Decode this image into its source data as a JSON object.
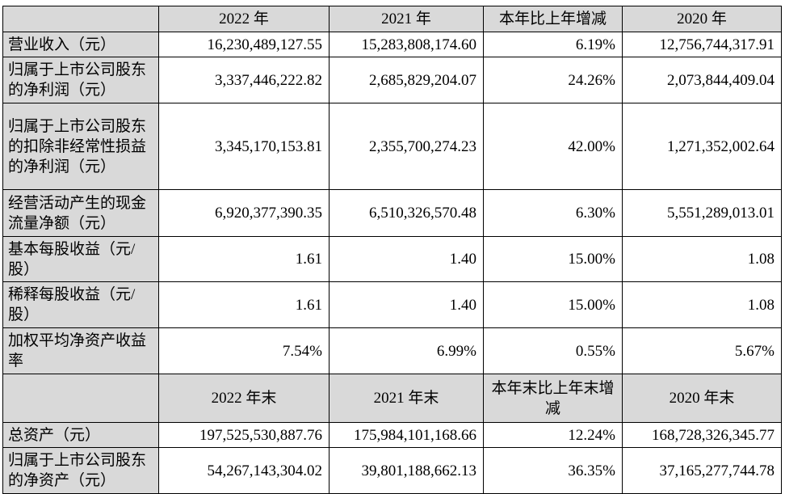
{
  "header1": {
    "col1": "2022 年",
    "col2": "2021 年",
    "col3": "本年比上年增减",
    "col4": "2020 年"
  },
  "rows1": [
    {
      "label": "营业收入（元）",
      "v2022": "16,230,489,127.55",
      "v2021": "15,283,808,174.60",
      "change": "6.19%",
      "v2020": "12,756,744,317.91"
    },
    {
      "label": "归属于上市公司股东的净利润（元）",
      "v2022": "3,337,446,222.82",
      "v2021": "2,685,829,204.07",
      "change": "24.26%",
      "v2020": "2,073,844,409.04"
    },
    {
      "label": "归属于上市公司股东的扣除非经常性损益的净利润（元）",
      "v2022": "3,345,170,153.81",
      "v2021": "2,355,700,274.23",
      "change": "42.00%",
      "v2020": "1,271,352,002.64"
    },
    {
      "label": "经营活动产生的现金流量净额（元）",
      "v2022": "6,920,377,390.35",
      "v2021": "6,510,326,570.48",
      "change": "6.30%",
      "v2020": "5,551,289,013.01"
    },
    {
      "label": "基本每股收益（元/股）",
      "v2022": "1.61",
      "v2021": "1.40",
      "change": "15.00%",
      "v2020": "1.08"
    },
    {
      "label": "稀释每股收益（元/股）",
      "v2022": "1.61",
      "v2021": "1.40",
      "change": "15.00%",
      "v2020": "1.08"
    },
    {
      "label": "加权平均净资产收益率",
      "v2022": "7.54%",
      "v2021": "6.99%",
      "change": "0.55%",
      "v2020": "5.67%"
    }
  ],
  "header2": {
    "col1": "2022 年末",
    "col2": "2021 年末",
    "col3": "本年末比上年末增减",
    "col4": "2020 年末"
  },
  "rows2": [
    {
      "label": "总资产（元）",
      "v2022": "197,525,530,887.76",
      "v2021": "175,984,101,168.66",
      "change": "12.24%",
      "v2020": "168,728,326,345.77"
    },
    {
      "label": "归属于上市公司股东的净资产（元）",
      "v2022": "54,267,143,304.02",
      "v2021": "39,801,188,662.13",
      "change": "36.35%",
      "v2020": "37,165,277,744.78"
    }
  ]
}
